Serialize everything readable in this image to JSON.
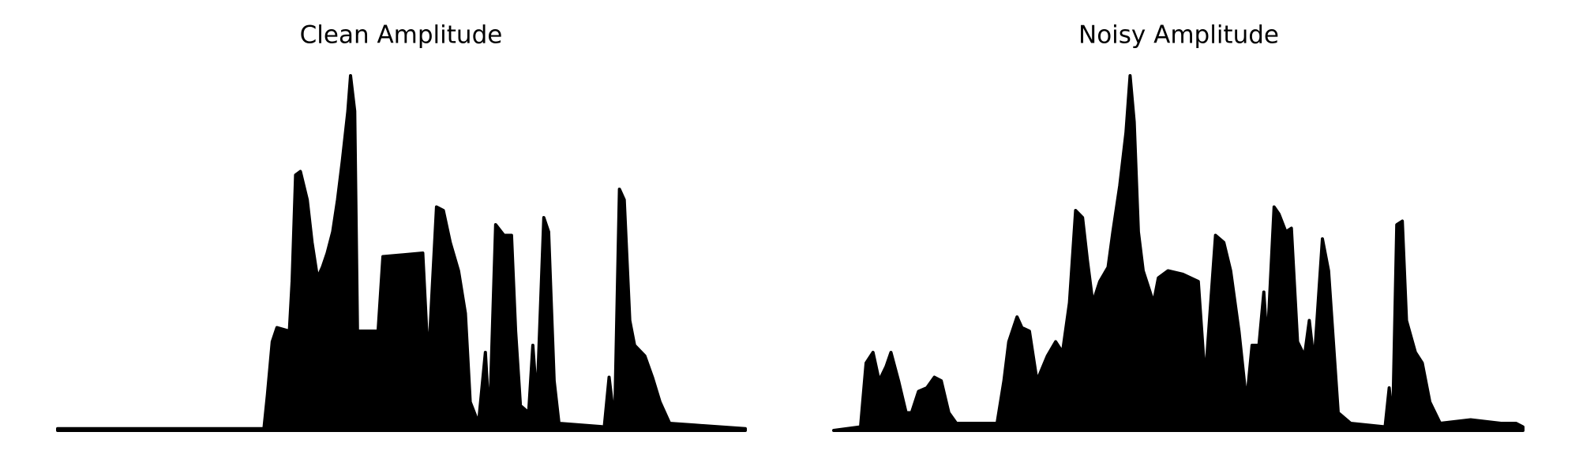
{
  "chart_data": [
    {
      "type": "area",
      "title": "Clean Amplitude",
      "color": "#000000",
      "xlim": [
        0,
        100
      ],
      "ylim": [
        0,
        1
      ],
      "x": [
        0,
        30,
        30.5,
        31.2,
        31.9,
        33.7,
        34.1,
        34.6,
        35.3,
        36.3,
        37,
        37.8,
        38.5,
        39.2,
        40,
        40.7,
        41.4,
        42.2,
        42.6,
        43.2,
        43.6,
        46.6,
        47.3,
        53.1,
        53.9,
        55.1,
        56.1,
        57.1,
        58.3,
        59.3,
        60,
        61.2,
        62.2,
        62.8,
        63.7,
        64.9,
        66,
        66.6,
        67.3,
        68.5,
        69.1,
        69.7,
        70.7,
        71.4,
        72.2,
        72.9,
        79.5,
        80.2,
        81,
        81.7,
        82.4,
        83.2,
        83.9,
        85.4,
        86.5,
        87.6,
        89,
        92.7,
        100
      ],
      "values": [
        0.005,
        0.005,
        0.1,
        0.25,
        0.29,
        0.28,
        0.42,
        0.72,
        0.73,
        0.65,
        0.53,
        0.43,
        0.46,
        0.5,
        0.56,
        0.65,
        0.76,
        0.9,
        1.0,
        0.9,
        0.28,
        0.28,
        0.49,
        0.5,
        0.19,
        0.63,
        0.62,
        0.53,
        0.45,
        0.33,
        0.08,
        0.02,
        0.22,
        0.02,
        0.58,
        0.55,
        0.55,
        0.28,
        0.07,
        0.05,
        0.24,
        0.08,
        0.6,
        0.56,
        0.14,
        0.02,
        0.01,
        0.15,
        0.02,
        0.68,
        0.65,
        0.31,
        0.24,
        0.21,
        0.15,
        0.08,
        0.02,
        0.015,
        0.005
      ]
    },
    {
      "type": "area",
      "title": "Noisy Amplitude",
      "color": "#000000",
      "xlim": [
        0,
        100
      ],
      "ylim": [
        0,
        1
      ],
      "x": [
        0,
        3.9,
        4.7,
        5.7,
        6.6,
        7.6,
        8.3,
        9.4,
        10.5,
        11.3,
        12.3,
        13.5,
        14.6,
        15.6,
        16.7,
        17.8,
        23.7,
        24.7,
        25.4,
        26.6,
        27.3,
        28.4,
        29.5,
        31,
        32.2,
        33.2,
        34.2,
        35.1,
        36.1,
        36.8,
        37.6,
        38.6,
        39.8,
        40.5,
        41.5,
        42.4,
        43,
        43.6,
        44.2,
        44.9,
        46.4,
        47.1,
        48.5,
        50.7,
        52.9,
        53.9,
        55.4,
        56.6,
        57.6,
        58.8,
        59.9,
        60.7,
        61.7,
        62.4,
        62.9,
        63.9,
        64.6,
        65.6,
        66.4,
        67.3,
        68.3,
        69,
        69.7,
        70.9,
        71.8,
        72.5,
        73.2,
        75,
        80,
        80.6,
        81.1,
        81.7,
        82.5,
        83.1,
        84.4,
        85.4,
        86.5,
        88,
        92.4,
        96.8,
        99,
        100
      ],
      "values": [
        0,
        0.01,
        0.19,
        0.22,
        0.14,
        0.18,
        0.22,
        0.14,
        0.05,
        0.05,
        0.11,
        0.12,
        0.15,
        0.14,
        0.05,
        0.02,
        0.02,
        0.14,
        0.25,
        0.32,
        0.29,
        0.28,
        0.14,
        0.21,
        0.25,
        0.22,
        0.36,
        0.62,
        0.6,
        0.48,
        0.36,
        0.42,
        0.46,
        0.56,
        0.69,
        0.84,
        1.0,
        0.87,
        0.56,
        0.45,
        0.36,
        0.43,
        0.45,
        0.44,
        0.42,
        0.14,
        0.55,
        0.53,
        0.45,
        0.28,
        0.08,
        0.24,
        0.24,
        0.39,
        0.24,
        0.63,
        0.61,
        0.56,
        0.57,
        0.25,
        0.21,
        0.31,
        0.19,
        0.54,
        0.45,
        0.25,
        0.05,
        0.02,
        0.01,
        0.12,
        0.02,
        0.58,
        0.59,
        0.31,
        0.22,
        0.19,
        0.08,
        0.02,
        0.03,
        0.02,
        0.02,
        0.01
      ]
    }
  ]
}
